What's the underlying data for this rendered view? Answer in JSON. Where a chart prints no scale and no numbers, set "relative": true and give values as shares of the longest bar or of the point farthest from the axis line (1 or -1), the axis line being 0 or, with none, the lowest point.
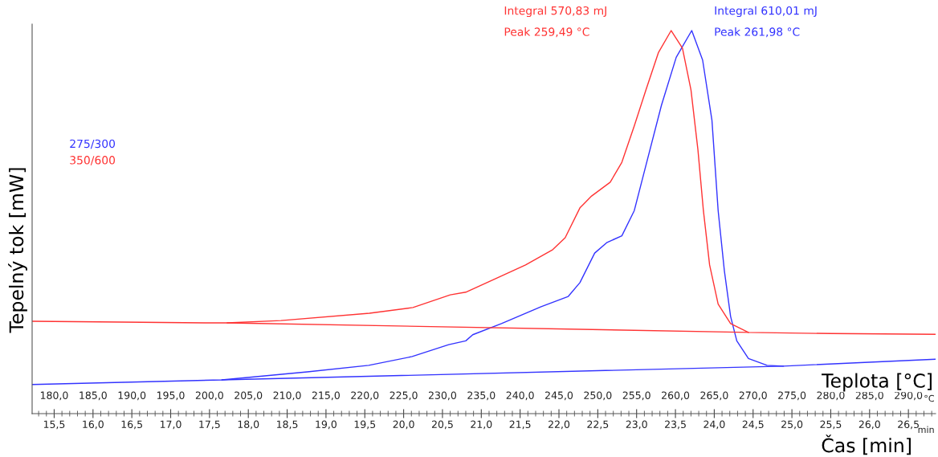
{
  "chart_data": {
    "type": "line",
    "relative": true,
    "ylabel": "Tepelný tok [mW]",
    "xlabel": "Teplota [°C]",
    "x2label": "Čas [min]",
    "xlim": [
      177.16,
      293.5
    ],
    "xticks": [
      {
        "value": 180,
        "label": "180,0"
      },
      {
        "value": 185,
        "label": "185,0"
      },
      {
        "value": 190,
        "label": "190,0"
      },
      {
        "value": 195,
        "label": "195,0"
      },
      {
        "value": 200,
        "label": "200,0"
      },
      {
        "value": 205,
        "label": "205,0"
      },
      {
        "value": 210,
        "label": "210,0"
      },
      {
        "value": 215,
        "label": "215,0"
      },
      {
        "value": 220,
        "label": "220,0"
      },
      {
        "value": 225,
        "label": "225,0"
      },
      {
        "value": 230,
        "label": "230,0"
      },
      {
        "value": 235,
        "label": "235,0"
      },
      {
        "value": 240,
        "label": "240,0"
      },
      {
        "value": 245,
        "label": "245,0"
      },
      {
        "value": 250,
        "label": "250,0"
      },
      {
        "value": 255,
        "label": "255,0"
      },
      {
        "value": 260,
        "label": "260,0"
      },
      {
        "value": 265,
        "label": "265,0"
      },
      {
        "value": 270,
        "label": "270,0"
      },
      {
        "value": 275,
        "label": "275,0"
      },
      {
        "value": 280,
        "label": "280,0"
      },
      {
        "value": 285,
        "label": "285,0"
      },
      {
        "value": 290,
        "label": "290,0"
      }
    ],
    "x2lim": [
      15.216,
      26.85
    ],
    "x2ticks": [
      {
        "value": 15.5,
        "label": "15,5"
      },
      {
        "value": 16,
        "label": "16,0"
      },
      {
        "value": 16.5,
        "label": "16,5"
      },
      {
        "value": 17,
        "label": "17,0"
      },
      {
        "value": 17.5,
        "label": "17,5"
      },
      {
        "value": 18,
        "label": "18,0"
      },
      {
        "value": 18.5,
        "label": "18,5"
      },
      {
        "value": 19,
        "label": "19,0"
      },
      {
        "value": 19.5,
        "label": "19,5"
      },
      {
        "value": 20,
        "label": "20,0"
      },
      {
        "value": 20.5,
        "label": "20,5"
      },
      {
        "value": 21,
        "label": "21,0"
      },
      {
        "value": 21.5,
        "label": "21,5"
      },
      {
        "value": 22,
        "label": "22,0"
      },
      {
        "value": 22.5,
        "label": "22,5"
      },
      {
        "value": 23,
        "label": "23,0"
      },
      {
        "value": 23.5,
        "label": "23,5"
      },
      {
        "value": 24,
        "label": "24,0"
      },
      {
        "value": 24.5,
        "label": "24,5"
      },
      {
        "value": 25,
        "label": "25,0"
      },
      {
        "value": 25.5,
        "label": "25,5"
      },
      {
        "value": 26,
        "label": "26,0"
      },
      {
        "value": 26.5,
        "label": "26,5"
      }
    ],
    "legend": "top left",
    "grid": false,
    "marker": "none",
    "line_style": "solid",
    "series": [
      {
        "name": "275/300",
        "color": "#3333ff",
        "x": [
          177.16,
          201.6,
          212.6,
          220.5,
          226.1,
          230.8,
          233.0,
          233.9,
          237.6,
          242.7,
          246.2,
          247.7,
          249.6,
          251.2,
          253.1,
          254.7,
          256.2,
          258.2,
          260.1,
          262.1,
          263.5,
          264.7,
          265.5,
          266.3,
          267.1,
          267.9,
          269.4,
          271.8,
          273.9,
          293.5
        ],
        "values": [
          0.076,
          0.088,
          0.109,
          0.126,
          0.149,
          0.18,
          0.19,
          0.206,
          0.235,
          0.279,
          0.306,
          0.342,
          0.419,
          0.447,
          0.464,
          0.53,
          0.648,
          0.805,
          0.93,
          1.0,
          0.923,
          0.766,
          0.53,
          0.373,
          0.254,
          0.19,
          0.144,
          0.126,
          0.124,
          0.142
        ]
      },
      {
        "name": "350/600",
        "color": "#ff3333",
        "x": [
          177.16,
          188.5,
          199.4,
          202.3,
          209.2,
          220.6,
          226.2,
          231.0,
          233.0,
          236.8,
          240.7,
          244.2,
          245.8,
          247.7,
          249.2,
          251.6,
          253.1,
          254.7,
          256.2,
          257.8,
          259.45,
          260.9,
          262.0,
          262.9,
          263.6,
          264.4,
          265.5,
          267.1,
          269.4,
          280.0,
          293.5
        ],
        "values": [
          0.241,
          0.239,
          0.237,
          0.237,
          0.243,
          0.262,
          0.277,
          0.31,
          0.317,
          0.352,
          0.388,
          0.428,
          0.459,
          0.537,
          0.568,
          0.604,
          0.656,
          0.751,
          0.845,
          0.942,
          1.0,
          0.954,
          0.845,
          0.688,
          0.53,
          0.388,
          0.286,
          0.235,
          0.212,
          0.209,
          0.207
        ]
      },
      {
        "color": "#3333ff",
        "x": [
          201.6,
          273.9
        ],
        "values": [
          0.088,
          0.124
        ]
      },
      {
        "color": "#ff3333",
        "x": [
          202.3,
          269.4
        ],
        "values": [
          0.237,
          0.212
        ]
      }
    ],
    "annotations": [
      "Integral 570,83 mJ",
      "Peak 259,49 °C",
      "Integral 610,01 mJ",
      "Peak 261,98 °C",
      "°C",
      "min"
    ]
  }
}
